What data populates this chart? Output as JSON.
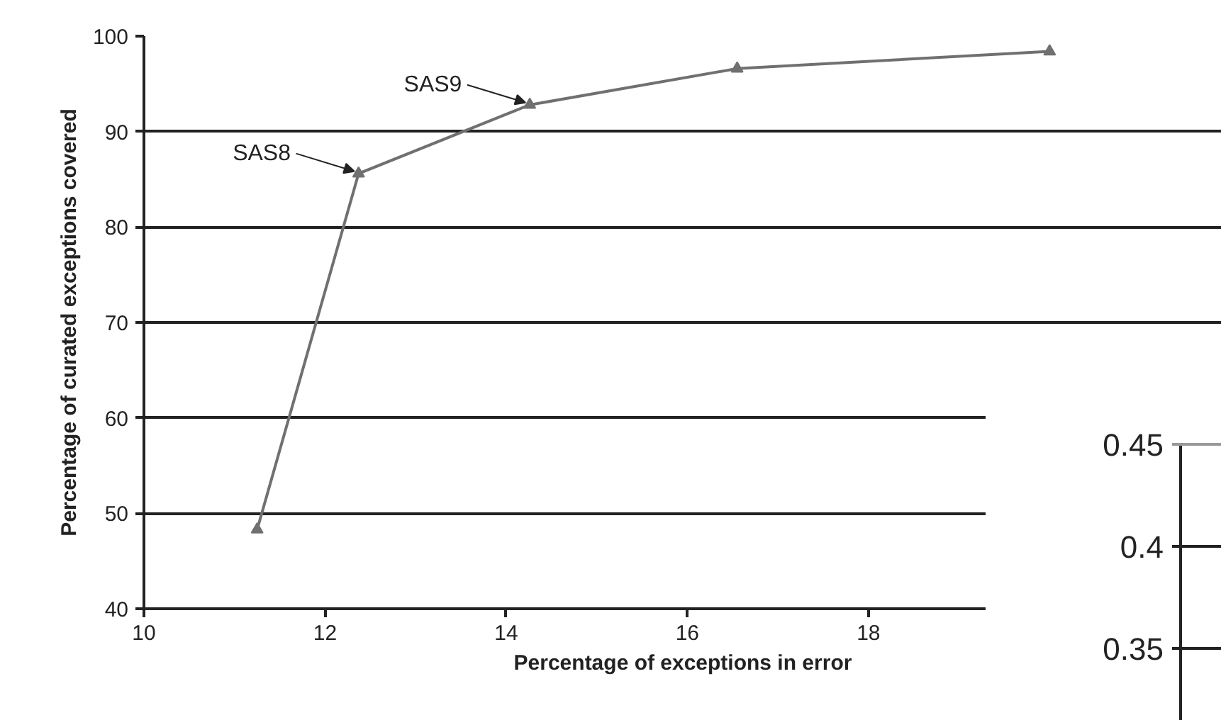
{
  "chart_data": [
    {
      "type": "line",
      "xlabel": "Percentage of exceptions in error",
      "ylabel": "Percentage of curated exceptions covered",
      "x": [
        11.25,
        12.37,
        14.26,
        16.55,
        20.0
      ],
      "series": [
        {
          "color": "#707070",
          "values": [
            48.3,
            85.6,
            92.8,
            96.6,
            98.4
          ]
        }
      ],
      "xlim": [
        10,
        21.9
      ],
      "xticks": [
        10,
        12,
        14,
        16,
        18
      ],
      "ylim": [
        40,
        100
      ],
      "yticks": [
        40,
        50,
        60,
        70,
        80,
        90,
        100
      ],
      "grid": "y",
      "marker": "triangle",
      "line_style": "solid",
      "annotations": [
        {
          "text": "SAS8",
          "x": 12.37,
          "y": 85.6
        },
        {
          "text": "SAS9",
          "x": 14.26,
          "y": 92.8
        }
      ]
    },
    {
      "type": "other",
      "annotations": [
        "0.45",
        "0.4",
        "0.35"
      ]
    }
  ]
}
